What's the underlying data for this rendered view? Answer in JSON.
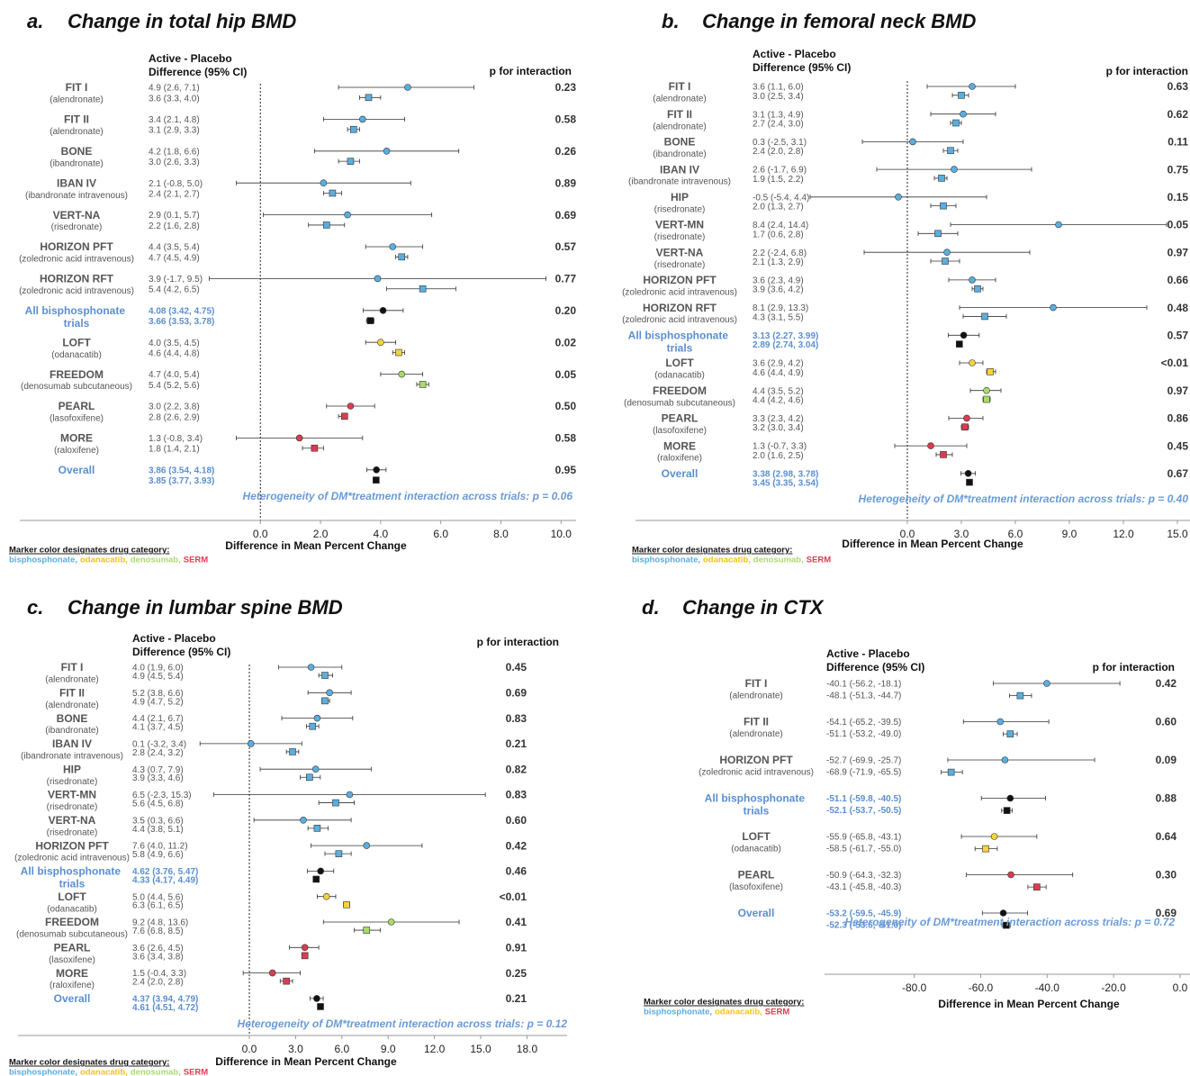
{
  "chart_data": [
    {
      "type": "forest",
      "label": "a.",
      "title": "Change in total hip BMD",
      "header": [
        "Active - Placebo",
        "Difference (95% CI)"
      ],
      "p_header": "p for interaction",
      "categories": [
        "FIT I",
        "FIT II",
        "BONE",
        "IBAN IV",
        "VERT-NA",
        "HORIZON PFT",
        "HORIZON RFT",
        "All bisphosphonate trials",
        "LOFT",
        "FREEDOM",
        "PEARL",
        "MORE",
        "Overall"
      ],
      "subtitles": [
        "(alendronate)",
        "(alendronate)",
        "(ibandronate)",
        "(ibandronate intravenous)",
        "(risedronate)",
        "(zoledronic acid intravenous)",
        "(zoledronic acid intravenous)",
        null,
        "(odanacatib)",
        "(denosumab subcutaneous)",
        "(lasofoxifene)",
        "(raloxifene)",
        null
      ],
      "colors": [
        "#5aaee0",
        "#5aaee0",
        "#5aaee0",
        "#5aaee0",
        "#5aaee0",
        "#5aaee0",
        "#5aaee0",
        "#111111",
        "#f5d33a",
        "#a9db6a",
        "#d93d50",
        "#d93d50",
        "#111111"
      ],
      "series": [
        {
          "marker": "circle",
          "values": [
            4.9,
            3.4,
            4.2,
            2.1,
            2.9,
            4.4,
            3.9,
            4.08,
            4.0,
            4.7,
            3.0,
            1.3,
            3.86
          ],
          "lower": [
            2.6,
            2.1,
            1.8,
            -0.8,
            0.1,
            3.5,
            -1.7,
            3.42,
            3.5,
            4.0,
            2.2,
            -0.8,
            3.54
          ],
          "upper": [
            7.1,
            4.8,
            6.6,
            5.0,
            5.7,
            5.4,
            9.5,
            4.75,
            4.5,
            5.4,
            3.8,
            3.4,
            4.18
          ],
          "value_labels": [
            "4.9 (2.6, 7.1)",
            "3.4 (2.1, 4.8)",
            "4.2 (1.8, 6.6)",
            "2.1 (-0.8, 5.0)",
            "2.9 (0.1, 5.7)",
            "4.4 (3.5, 5.4)",
            "3.9 (-1.7, 9.5)",
            "4.08 (3.42, 4.75)",
            "4.0 (3.5, 4.5)",
            "4.7 (4.0, 5.4)",
            "3.0 (2.2, 3.8)",
            "1.3 (-0.8, 3.4)",
            "3.86 (3.54, 4.18)"
          ]
        },
        {
          "marker": "square",
          "values": [
            3.6,
            3.1,
            3.0,
            2.4,
            2.2,
            4.7,
            5.4,
            3.66,
            4.6,
            5.4,
            2.8,
            1.8,
            3.85
          ],
          "lower": [
            3.3,
            2.9,
            2.6,
            2.1,
            1.6,
            4.5,
            4.2,
            3.53,
            4.4,
            5.2,
            2.6,
            1.4,
            3.77
          ],
          "upper": [
            4.0,
            3.3,
            3.3,
            2.7,
            2.8,
            4.9,
            6.5,
            3.78,
            4.8,
            5.6,
            2.9,
            2.1,
            3.93
          ],
          "value_labels": [
            "3.6 (3.3, 4.0)",
            "3.1 (2.9, 3.3)",
            "3.0 (2.6, 3.3)",
            "2.4 (2.1, 2.7)",
            "2.2 (1.6, 2.8)",
            "4.7 (4.5, 4.9)",
            "5.4 (4.2, 6.5)",
            "3.66 (3.53, 3.78)",
            "4.6 (4.4, 4.8)",
            "5.4 (5.2, 5.6)",
            "2.8 (2.6, 2.9)",
            "1.8 (1.4, 2.1)",
            "3.85 (3.77, 3.93)"
          ]
        }
      ],
      "p_labels": [
        "0.23",
        "0.58",
        "0.26",
        "0.89",
        "0.69",
        "0.57",
        "0.77",
        "0.20",
        "0.02",
        "0.05",
        "0.50",
        "0.58",
        "0.95"
      ],
      "heterogeneity": "Heterogeneity of DM*treatment interaction across trials: p = 0.06",
      "xlabel": "Difference in Mean Percent Change",
      "xlim": [
        -8,
        10.5
      ],
      "xticks": [
        {
          "value": 0,
          "label": "0.0"
        },
        {
          "value": 2,
          "label": "2.0"
        },
        {
          "value": 4,
          "label": "4.0"
        },
        {
          "value": 6,
          "label": "6.0"
        },
        {
          "value": 8,
          "label": "8.0"
        },
        {
          "value": 10,
          "label": "10.0"
        }
      ],
      "zero_line": true,
      "legend_title": "Marker color designates drug category:",
      "legend": [
        {
          "name": "bisphosphonate,",
          "color": "#5aaee0"
        },
        {
          "name": "odanacatib,",
          "color": "#f0c419"
        },
        {
          "name": "denosumab,",
          "color": "#a9db6a"
        },
        {
          "name": "SERM",
          "color": "#d93d50"
        }
      ]
    },
    {
      "type": "forest",
      "label": "b.",
      "title": "Change in femoral neck BMD",
      "header": [
        "Active - Placebo",
        "Difference (95% CI)"
      ],
      "p_header": "p for interaction",
      "categories": [
        "FIT I",
        "FIT II",
        "BONE",
        "IBAN IV",
        "HIP",
        "VERT-MN",
        "VERT-NA",
        "HORIZON PFT",
        "HORIZON RFT",
        "All bisphosphonate trials",
        "LOFT",
        "FREEDOM",
        "PEARL",
        "MORE",
        "Overall"
      ],
      "subtitles": [
        "(alendronate)",
        "(alendronate)",
        "(ibandronate)",
        "(ibandronate intravenous)",
        "(risedronate)",
        "(risedronate)",
        "(risedronate)",
        "(zoledronic acid intravenous)",
        "(zoledronic acid intravenous)",
        null,
        "(odanacatib)",
        "(denosumab subcutaneous)",
        "(lasofoxifene)",
        "(raloxifene)",
        null
      ],
      "colors": [
        "#5aaee0",
        "#5aaee0",
        "#5aaee0",
        "#5aaee0",
        "#5aaee0",
        "#5aaee0",
        "#5aaee0",
        "#5aaee0",
        "#5aaee0",
        "#111111",
        "#f5d33a",
        "#a9db6a",
        "#d93d50",
        "#d93d50",
        "#111111"
      ],
      "series": [
        {
          "marker": "circle",
          "values": [
            3.6,
            3.1,
            0.3,
            2.6,
            -0.5,
            8.4,
            2.2,
            3.6,
            8.1,
            3.13,
            3.6,
            4.4,
            3.3,
            1.3,
            3.38
          ],
          "lower": [
            1.1,
            1.3,
            -2.5,
            -1.7,
            -5.4,
            2.4,
            -2.4,
            2.3,
            2.9,
            2.27,
            2.9,
            3.5,
            2.3,
            -0.7,
            2.98
          ],
          "upper": [
            6.0,
            4.9,
            3.1,
            6.9,
            4.4,
            14.4,
            6.8,
            4.9,
            13.3,
            3.99,
            4.2,
            5.2,
            4.2,
            3.3,
            3.78
          ],
          "value_labels": [
            "3.6 (1.1, 6.0)",
            "3.1 (1.3, 4.9)",
            "0.3 (-2.5, 3.1)",
            "2.6 (-1.7, 6.9)",
            "-0.5 (-5.4, 4.4)",
            "8.4 (2.4, 14.4)",
            "2.2 (-2.4, 6.8)",
            "3.6 (2.3, 4.9)",
            "8.1 (2.9, 13.3)",
            "3.13 (2.27, 3.99)",
            "3.6 (2.9, 4.2)",
            "4.4 (3.5, 5.2)",
            "3.3 (2.3, 4.2)",
            "1.3 (-0.7, 3.3)",
            "3.38 (2.98, 3.78)"
          ]
        },
        {
          "marker": "square",
          "values": [
            3.0,
            2.7,
            2.4,
            1.9,
            2.0,
            1.7,
            2.1,
            3.9,
            4.3,
            2.89,
            4.6,
            4.4,
            3.2,
            2.0,
            3.45
          ],
          "lower": [
            2.5,
            2.4,
            2.0,
            1.5,
            1.3,
            0.6,
            1.3,
            3.6,
            3.1,
            2.74,
            4.4,
            4.2,
            3.0,
            1.6,
            3.35
          ],
          "upper": [
            3.4,
            3.0,
            2.8,
            2.2,
            2.7,
            2.8,
            2.9,
            4.2,
            5.5,
            3.04,
            4.9,
            4.6,
            3.4,
            2.5,
            3.54
          ],
          "value_labels": [
            "3.0 (2.5, 3.4)",
            "2.7 (2.4, 3.0)",
            "2.4 (2.0, 2.8)",
            "1.9 (1.5, 2.2)",
            "2.0 (1.3, 2.7)",
            "1.7 (0.6, 2.8)",
            "2.1 (1.3, 2.9)",
            "3.9 (3.6, 4.2)",
            "4.3 (3.1, 5.5)",
            "2.89 (2.74, 3.04)",
            "4.6 (4.4, 4.9)",
            "4.4 (4.2, 4.6)",
            "3.2 (3.0, 3.4)",
            "2.0 (1.6, 2.5)",
            "3.45 (3.35, 3.54)"
          ]
        }
      ],
      "p_labels": [
        "0.63",
        "0.62",
        "0.11",
        "0.75",
        "0.15",
        "0.05",
        "0.97",
        "0.66",
        "0.48",
        "0.57",
        "<0.01",
        "0.97",
        "0.86",
        "0.45",
        "0.67"
      ],
      "heterogeneity": "Heterogeneity of DM*treatment interaction across trials: p = 0.40",
      "xlabel": "Difference in Mean Percent Change",
      "xlim": [
        -15.1,
        15.7
      ],
      "xticks": [
        {
          "value": 0,
          "label": "0.0"
        },
        {
          "value": 3,
          "label": "3.0"
        },
        {
          "value": 6,
          "label": "6.0"
        },
        {
          "value": 9,
          "label": "9.0"
        },
        {
          "value": 12,
          "label": "12.0"
        },
        {
          "value": 15,
          "label": "15.0"
        }
      ],
      "zero_line": true,
      "legend_title": "Marker color designates drug category:",
      "legend": [
        {
          "name": "bisphosphonate,",
          "color": "#5aaee0"
        },
        {
          "name": "odanacatib,",
          "color": "#f0c419"
        },
        {
          "name": "denosumab,",
          "color": "#a9db6a"
        },
        {
          "name": "SERM",
          "color": "#d93d50"
        }
      ]
    },
    {
      "type": "forest",
      "label": "c.",
      "title": "Change in lumbar spine BMD",
      "header": [
        "Active - Placebo",
        "Difference (95% CI)"
      ],
      "p_header": "p for interaction",
      "categories": [
        "FIT I",
        "FIT II",
        "BONE",
        "IBAN IV",
        "HIP",
        "VERT-MN",
        "VERT-NA",
        "HORIZON PFT",
        "All bisphosphonate trials",
        "LOFT",
        "FREEDOM",
        "PEARL",
        "MORE",
        "Overall"
      ],
      "subtitles": [
        "(alendronate)",
        "(alendronate)",
        "(ibandronate)",
        "(ibandronate intravenous)",
        "(risedronate)",
        "(risedronate)",
        "(risedronate)",
        "(zoledronic acid intravenous)",
        null,
        "(odanacatib)",
        "(denosumab subcutaneous)",
        "(lasoxifene)",
        "(raloxifene)",
        null
      ],
      "colors": [
        "#5aaee0",
        "#5aaee0",
        "#5aaee0",
        "#5aaee0",
        "#5aaee0",
        "#5aaee0",
        "#5aaee0",
        "#5aaee0",
        "#111111",
        "#f5d33a",
        "#a9db6a",
        "#d93d50",
        "#d93d50",
        "#111111"
      ],
      "series": [
        {
          "marker": "circle",
          "values": [
            4.0,
            5.2,
            4.4,
            0.1,
            4.3,
            6.5,
            3.5,
            7.6,
            4.62,
            5.0,
            9.2,
            3.6,
            1.5,
            4.37
          ],
          "lower": [
            1.9,
            3.8,
            2.1,
            -3.2,
            0.7,
            -2.3,
            0.3,
            4.0,
            3.76,
            4.4,
            4.8,
            2.6,
            -0.4,
            3.94
          ],
          "upper": [
            6.0,
            6.6,
            6.7,
            3.4,
            7.9,
            15.3,
            6.6,
            11.2,
            5.47,
            5.6,
            13.6,
            4.5,
            3.3,
            4.79
          ],
          "value_labels": [
            "4.0 (1.9, 6.0)",
            "5.2 (3.8, 6.6)",
            "4.4 (2.1, 6.7)",
            "0.1 (-3.2, 3.4)",
            "4.3 (0.7, 7.9)",
            "6.5 (-2.3, 15.3)",
            "3.5 (0.3, 6.6)",
            "7.6 (4.0, 11.2)",
            "4.62 (3.76, 5.47)",
            "5.0 (4.4, 5.6)",
            "9.2 (4.8, 13.6)",
            "3.6 (2.6, 4.5)",
            "1.5 (-0.4, 3.3)",
            "4.37 (3.94, 4.79)"
          ]
        },
        {
          "marker": "square",
          "values": [
            4.9,
            4.9,
            4.1,
            2.8,
            3.9,
            5.6,
            4.4,
            5.8,
            4.33,
            6.3,
            7.6,
            3.6,
            2.4,
            4.61
          ],
          "lower": [
            4.5,
            4.7,
            3.7,
            2.4,
            3.3,
            4.5,
            3.8,
            4.9,
            4.17,
            6.1,
            6.8,
            3.4,
            2.0,
            4.51
          ],
          "upper": [
            5.4,
            5.2,
            4.5,
            3.2,
            4.6,
            6.8,
            5.1,
            6.6,
            4.49,
            6.5,
            8.5,
            3.8,
            2.8,
            4.72
          ],
          "value_labels": [
            "4.9 (4.5, 5.4)",
            "4.9 (4.7, 5.2)",
            "4.1 (3.7, 4.5)",
            "2.8 (2.4, 3.2)",
            "3.9 (3.3, 4.6)",
            "5.6 (4.5, 6.8)",
            "4.4 (3.8, 5.1)",
            "5.8 (4.9, 6.6)",
            "4.33 (4.17, 4.49)",
            "6.3 (6.1, 6.5)",
            "7.6 (6.8, 8.5)",
            "3.6 (3.4, 3.8)",
            "2.4 (2.0, 2.8)",
            "4.61 (4.51, 4.72)"
          ]
        }
      ],
      "p_labels": [
        "0.45",
        "0.69",
        "0.83",
        "0.21",
        "0.82",
        "0.83",
        "0.60",
        "0.42",
        "0.46",
        "<0.01",
        "0.41",
        "0.91",
        "0.25",
        "0.21"
      ],
      "heterogeneity": "Heterogeneity of DM*treatment interaction across trials: p = 0.12",
      "xlabel": "Difference in Mean Percent Change",
      "xlim": [
        -15,
        20.6
      ],
      "xticks": [
        {
          "value": 0,
          "label": "0.0"
        },
        {
          "value": 3,
          "label": "3.0"
        },
        {
          "value": 6,
          "label": "6.0"
        },
        {
          "value": 9,
          "label": "9.0"
        },
        {
          "value": 12,
          "label": "12.0"
        },
        {
          "value": 15,
          "label": "15.0"
        },
        {
          "value": 18,
          "label": "18.0"
        }
      ],
      "zero_line": true,
      "legend_title": "Marker color designates drug category:",
      "legend": [
        {
          "name": "bisphosphonate,",
          "color": "#5aaee0"
        },
        {
          "name": "odanacatib,",
          "color": "#f0c419"
        },
        {
          "name": "denosumab,",
          "color": "#a9db6a"
        },
        {
          "name": "SERM",
          "color": "#d93d50"
        }
      ]
    },
    {
      "type": "forest",
      "label": "d.",
      "title": "Change in CTX",
      "header": [
        "Active - Placebo",
        "Difference (95% CI)"
      ],
      "p_header": "p for interaction",
      "categories": [
        "FIT I",
        "FIT II",
        "HORIZON PFT",
        "All bisphosphonate trials",
        "LOFT",
        "PEARL",
        "Overall"
      ],
      "subtitles": [
        "(alendronate)",
        "(alendronate)",
        "(zoledronic acid intravenous)",
        null,
        "(odanacatib)",
        "(lasofoxifene)",
        null
      ],
      "colors": [
        "#5aaee0",
        "#5aaee0",
        "#5aaee0",
        "#111111",
        "#f5d33a",
        "#d93d50",
        "#111111"
      ],
      "series": [
        {
          "marker": "circle",
          "values": [
            -40.1,
            -54.1,
            -52.7,
            -51.1,
            -55.9,
            -50.9,
            -53.2
          ],
          "lower": [
            -56.2,
            -65.2,
            -69.9,
            -59.8,
            -65.8,
            -64.3,
            -59.5
          ],
          "upper": [
            -18.1,
            -39.5,
            -25.7,
            -40.5,
            -43.1,
            -32.3,
            -45.9
          ],
          "value_labels": [
            "-40.1 (-56.2, -18.1)",
            "-54.1 (-65.2, -39.5)",
            "-52.7 (-69.9, -25.7)",
            "-51.1 (-59.8, -40.5)",
            "-55.9 (-65.8, -43.1)",
            "-50.9 (-64.3, -32.3)",
            "-53.2 (-59.5, -45.9)"
          ]
        },
        {
          "marker": "square",
          "values": [
            -48.1,
            -51.1,
            -68.9,
            -52.1,
            -58.5,
            -43.1,
            -52.3
          ],
          "lower": [
            -51.3,
            -53.2,
            -71.9,
            -53.7,
            -61.7,
            -45.8,
            -53.6
          ],
          "upper": [
            -44.7,
            -49.0,
            -65.5,
            -50.5,
            -55.0,
            -40.3,
            -51.0
          ],
          "value_labels": [
            "-48.1 (-51.3, -44.7)",
            "-51.1 (-53.2, -49.0)",
            "-68.9 (-71.9, -65.5)",
            "-52.1 (-53.7, -50.5)",
            "-58.5 (-61.7, -55.0)",
            "-43.1 (-45.8, -40.3)",
            "-52.3 (-53.6, -51.0)"
          ]
        }
      ],
      "p_labels": [
        "0.42",
        "0.60",
        "0.09",
        "0.88",
        "0.64",
        "0.30",
        "0.69"
      ],
      "heterogeneity": "Heterogeneity of DM*treatment interaction across trials: p = 0.72",
      "xlabel": "Difference in Mean Percent Change",
      "xlim": [
        -107,
        3
      ],
      "xticks": [
        {
          "value": -80,
          "label": "-80.0"
        },
        {
          "value": -60,
          "label": "-60.0"
        },
        {
          "value": -40,
          "label": "-40.0"
        },
        {
          "value": -20,
          "label": "-20.0"
        },
        {
          "value": 0,
          "label": "0.0"
        }
      ],
      "zero_line": false,
      "legend_title": "Marker color designates drug category:",
      "legend": [
        {
          "name": "bisphosphonate,",
          "color": "#5aaee0"
        },
        {
          "name": "odanacatib,",
          "color": "#f0c419"
        },
        {
          "name": "SERM",
          "color": "#d93d50"
        }
      ]
    }
  ]
}
